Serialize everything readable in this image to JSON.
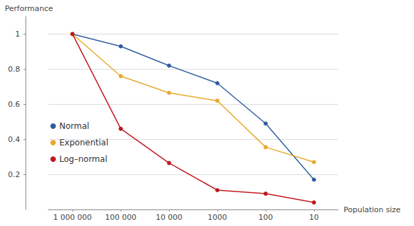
{
  "chart_data": {
    "type": "line",
    "xlabel": "Population size",
    "ylabel": "Performance",
    "categories": [
      "1 000 000",
      "100 000",
      "10 000",
      "1000",
      "100",
      "10"
    ],
    "series": [
      {
        "name": "Normal",
        "color": "#2f5d9e",
        "values": [
          1,
          0.93,
          0.82,
          0.72,
          0.49,
          0.17
        ]
      },
      {
        "name": "Exponential",
        "color": "#e8a92a",
        "values": [
          1,
          0.76,
          0.665,
          0.62,
          0.355,
          0.27
        ]
      },
      {
        "name": "Log–normal",
        "color": "#c1171d",
        "values": [
          1,
          0.46,
          0.265,
          0.11,
          0.09,
          0.04
        ]
      }
    ],
    "ylim": [
      0,
      1.1
    ],
    "yticks": [
      0.2,
      0.4,
      0.6,
      0.8,
      1
    ],
    "grid": true,
    "legend": "left",
    "marker": "circle"
  }
}
